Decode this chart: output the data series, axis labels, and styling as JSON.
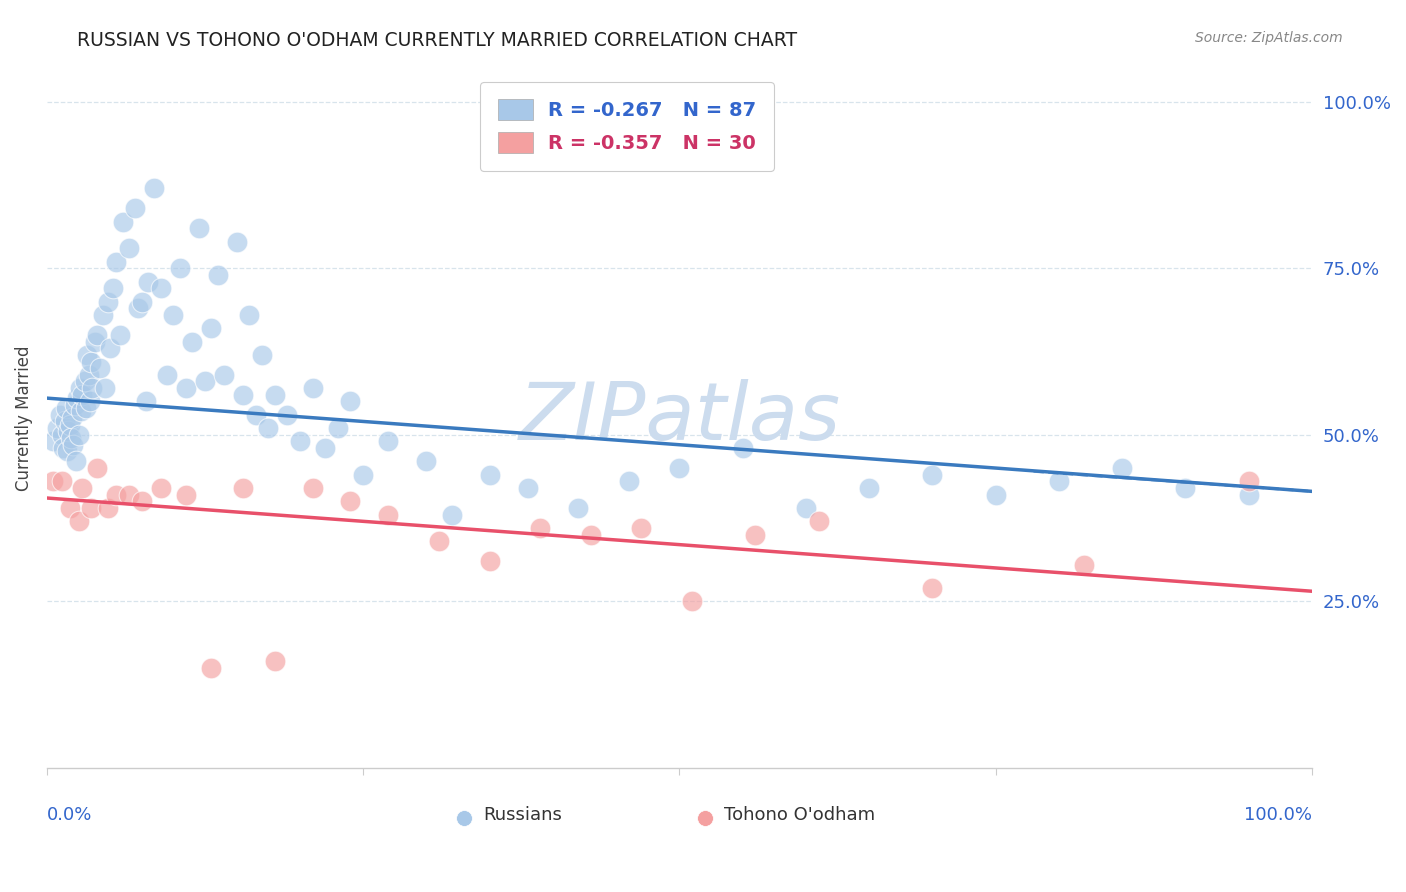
{
  "title": "RUSSIAN VS TOHONO O'ODHAM CURRENTLY MARRIED CORRELATION CHART",
  "source": "Source: ZipAtlas.com",
  "ylabel": "Currently Married",
  "x_min": 0.0,
  "x_max": 1.0,
  "y_min": 0.0,
  "y_max": 1.05,
  "yticks": [
    0.25,
    0.5,
    0.75,
    1.0
  ],
  "ytick_labels": [
    "25.0%",
    "50.0%",
    "75.0%",
    "100.0%"
  ],
  "russian_R": -0.267,
  "russian_N": 87,
  "tohono_R": -0.357,
  "tohono_N": 30,
  "blue_dot_color": "#a8c8e8",
  "blue_line_color": "#3a7abf",
  "pink_dot_color": "#f4a0a0",
  "pink_line_color": "#e8506a",
  "watermark_color": "#ccdcee",
  "grid_color": "#d8e4ec",
  "legend_text_blue": "#3366cc",
  "legend_text_pink": "#cc3366",
  "axis_tick_color": "#3366cc",
  "background_color": "#ffffff",
  "title_fontsize": 13.5,
  "blue_line_x0": 0.0,
  "blue_line_y0": 0.555,
  "blue_line_x1": 1.0,
  "blue_line_y1": 0.415,
  "pink_line_x0": 0.0,
  "pink_line_y0": 0.405,
  "pink_line_x1": 1.0,
  "pink_line_y1": 0.265,
  "dash_line_x0": 0.78,
  "dash_line_y0": 0.445,
  "dash_line_x1": 1.0,
  "dash_line_y1": 0.415,
  "russian_x": [
    0.005,
    0.008,
    0.01,
    0.012,
    0.013,
    0.014,
    0.015,
    0.016,
    0.017,
    0.018,
    0.019,
    0.02,
    0.021,
    0.022,
    0.023,
    0.024,
    0.025,
    0.026,
    0.027,
    0.028,
    0.03,
    0.031,
    0.032,
    0.033,
    0.034,
    0.035,
    0.036,
    0.038,
    0.04,
    0.042,
    0.044,
    0.046,
    0.048,
    0.05,
    0.052,
    0.055,
    0.058,
    0.06,
    0.065,
    0.07,
    0.072,
    0.075,
    0.078,
    0.08,
    0.085,
    0.09,
    0.095,
    0.1,
    0.105,
    0.11,
    0.115,
    0.12,
    0.125,
    0.13,
    0.135,
    0.14,
    0.15,
    0.155,
    0.16,
    0.165,
    0.17,
    0.175,
    0.18,
    0.19,
    0.2,
    0.21,
    0.22,
    0.23,
    0.24,
    0.25,
    0.27,
    0.3,
    0.32,
    0.35,
    0.38,
    0.42,
    0.46,
    0.5,
    0.55,
    0.6,
    0.65,
    0.7,
    0.75,
    0.8,
    0.85,
    0.9,
    0.95
  ],
  "russian_y": [
    0.49,
    0.51,
    0.53,
    0.5,
    0.48,
    0.52,
    0.54,
    0.475,
    0.505,
    0.515,
    0.495,
    0.525,
    0.485,
    0.545,
    0.46,
    0.555,
    0.5,
    0.57,
    0.535,
    0.56,
    0.58,
    0.54,
    0.62,
    0.59,
    0.55,
    0.61,
    0.57,
    0.64,
    0.65,
    0.6,
    0.68,
    0.57,
    0.7,
    0.63,
    0.72,
    0.76,
    0.65,
    0.82,
    0.78,
    0.84,
    0.69,
    0.7,
    0.55,
    0.73,
    0.87,
    0.72,
    0.59,
    0.68,
    0.75,
    0.57,
    0.64,
    0.81,
    0.58,
    0.66,
    0.74,
    0.59,
    0.79,
    0.56,
    0.68,
    0.53,
    0.62,
    0.51,
    0.56,
    0.53,
    0.49,
    0.57,
    0.48,
    0.51,
    0.55,
    0.44,
    0.49,
    0.46,
    0.38,
    0.44,
    0.42,
    0.39,
    0.43,
    0.45,
    0.48,
    0.39,
    0.42,
    0.44,
    0.41,
    0.43,
    0.45,
    0.42,
    0.41
  ],
  "tohono_x": [
    0.005,
    0.012,
    0.018,
    0.025,
    0.028,
    0.035,
    0.04,
    0.048,
    0.055,
    0.065,
    0.075,
    0.09,
    0.11,
    0.13,
    0.155,
    0.18,
    0.21,
    0.24,
    0.27,
    0.31,
    0.35,
    0.39,
    0.43,
    0.47,
    0.51,
    0.56,
    0.61,
    0.7,
    0.82,
    0.95
  ],
  "tohono_y": [
    0.43,
    0.43,
    0.39,
    0.37,
    0.42,
    0.39,
    0.45,
    0.39,
    0.41,
    0.41,
    0.4,
    0.42,
    0.41,
    0.15,
    0.42,
    0.16,
    0.42,
    0.4,
    0.38,
    0.34,
    0.31,
    0.36,
    0.35,
    0.36,
    0.25,
    0.35,
    0.37,
    0.27,
    0.305,
    0.43
  ]
}
